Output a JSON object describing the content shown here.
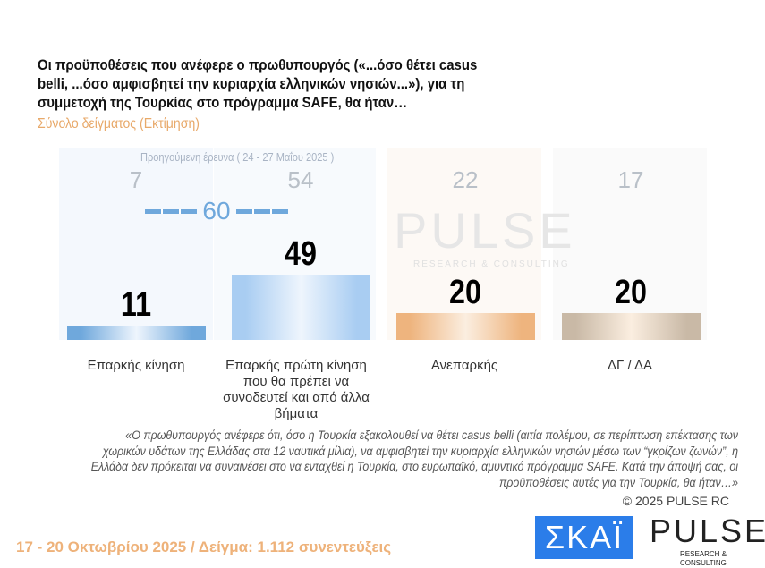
{
  "chart_data": {
    "type": "bar",
    "title": "Οι προϋποθέσεις που ανέφερε ο πρωθυπουργός («...όσο θέτει casus belli,  ...όσο αμφισβητεί την κυριαρχία ελληνικών νησιών...»), για τη συμμετοχή της Τουρκίας στο πρόγραμμα SAFE, θα ήταν…",
    "subtitle": "Σύνολο δείγματος   (Εκτίμηση)",
    "categories": [
      "Επαρκής κίνηση",
      "Επαρκής πρώτη κίνηση που θα πρέπει να συνοδευτεί και από άλλα βήματα",
      "Ανεπαρκής",
      "ΔΓ / ΔΑ"
    ],
    "values": [
      11,
      49,
      20,
      20
    ],
    "previous_label": "Προηγούμενη έρευνα  ( 24 - 27 Μαΐου 2025 )",
    "previous_values": [
      7,
      54,
      22,
      17
    ],
    "group_total": {
      "label": "60",
      "value": 60
    },
    "colors": [
      "#6fa8dc",
      "#a9cdf2",
      "#eeb47e",
      "#c9b9a6"
    ],
    "ylim": [
      0,
      100
    ]
  },
  "note": "«Ο πρωθυπουργός ανέφερε ότι, όσο η Τουρκία εξακολουθεί να θέτει casus belli (αιτία πολέμου, σε περίπτωση επέκτασης των χωρικών υδάτων της Ελλάδας στα 12 ναυτικά μίλια), να αμφισβητεί την κυριαρχία ελληνικών νησιών μέσω των “γκρίζων ζωνών”, η Ελλάδα δεν πρόκειται να συναινέσει στο να ενταχθεί η Τουρκία, στο ευρωπαϊκό, αμυντικό πρόγραμμα SAFE. Κατά την άποψή σας, οι προϋποθέσεις αυτές για την Τουρκία, θα ήταν…»",
  "copyright": "©  2025  PULSE RC",
  "footer": "17 - 20 Οκτωβρίου 2025  /  Δείγμα:  1.112 συνεντεύξεις",
  "logos": {
    "skai": "ΣΚΑΪ",
    "pulse": "PULSE",
    "pulse_sub": "RESEARCH & CONSULTING"
  }
}
